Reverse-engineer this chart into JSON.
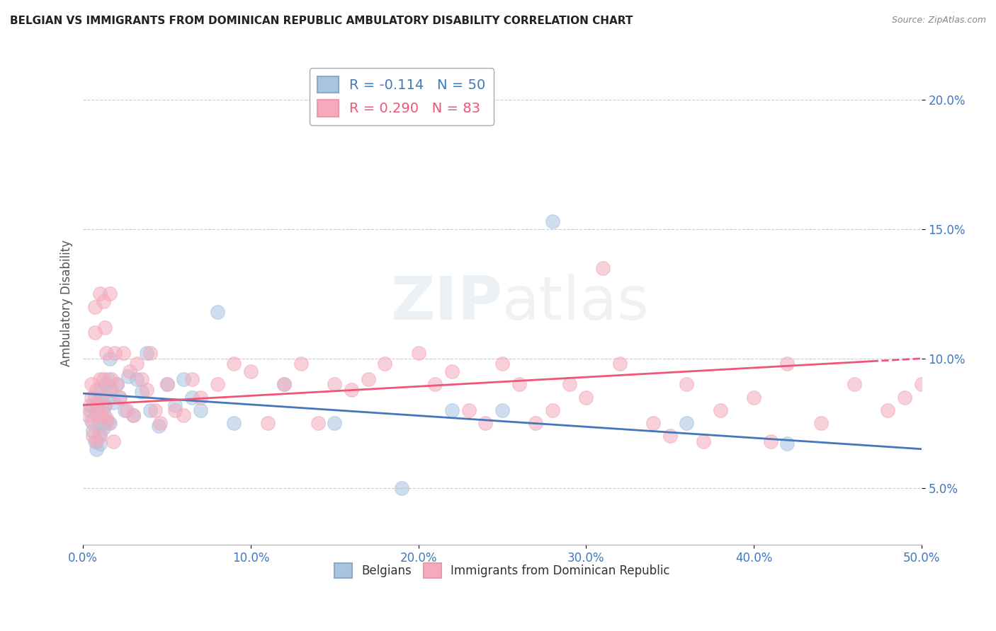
{
  "title": "BELGIAN VS IMMIGRANTS FROM DOMINICAN REPUBLIC AMBULATORY DISABILITY CORRELATION CHART",
  "source": "Source: ZipAtlas.com",
  "ylabel": "Ambulatory Disability",
  "xlabel": "",
  "xlim": [
    0.0,
    0.5
  ],
  "ylim": [
    0.028,
    0.215
  ],
  "xticks": [
    0.0,
    0.1,
    0.2,
    0.3,
    0.4,
    0.5
  ],
  "yticks": [
    0.05,
    0.1,
    0.15,
    0.2
  ],
  "watermark": "ZIPatlas",
  "legend_r1": "R = -0.114   N = 50",
  "legend_r2": "R = 0.290   N = 83",
  "blue_color": "#A8C4E0",
  "pink_color": "#F4AABC",
  "blue_line_color": "#4477BB",
  "pink_line_color": "#EE5577",
  "blue_r": -0.114,
  "pink_r": 0.29,
  "belgians_x": [
    0.004,
    0.005,
    0.006,
    0.006,
    0.007,
    0.007,
    0.008,
    0.008,
    0.009,
    0.01,
    0.01,
    0.01,
    0.01,
    0.011,
    0.012,
    0.012,
    0.013,
    0.013,
    0.014,
    0.015,
    0.015,
    0.016,
    0.016,
    0.017,
    0.018,
    0.02,
    0.022,
    0.025,
    0.027,
    0.03,
    0.032,
    0.035,
    0.038,
    0.04,
    0.045,
    0.05,
    0.055,
    0.06,
    0.065,
    0.07,
    0.08,
    0.09,
    0.12,
    0.15,
    0.19,
    0.22,
    0.25,
    0.28,
    0.36,
    0.42
  ],
  "belgians_y": [
    0.08,
    0.076,
    0.082,
    0.072,
    0.085,
    0.068,
    0.079,
    0.065,
    0.083,
    0.088,
    0.075,
    0.071,
    0.067,
    0.085,
    0.079,
    0.073,
    0.09,
    0.082,
    0.076,
    0.092,
    0.085,
    0.1,
    0.075,
    0.088,
    0.083,
    0.09,
    0.085,
    0.08,
    0.093,
    0.078,
    0.092,
    0.087,
    0.102,
    0.08,
    0.074,
    0.09,
    0.082,
    0.092,
    0.085,
    0.08,
    0.118,
    0.075,
    0.09,
    0.075,
    0.05,
    0.08,
    0.08,
    0.153,
    0.075,
    0.067
  ],
  "dominican_x": [
    0.003,
    0.004,
    0.005,
    0.005,
    0.006,
    0.006,
    0.007,
    0.007,
    0.008,
    0.008,
    0.009,
    0.009,
    0.01,
    0.01,
    0.01,
    0.011,
    0.011,
    0.012,
    0.012,
    0.013,
    0.013,
    0.014,
    0.014,
    0.015,
    0.016,
    0.016,
    0.017,
    0.018,
    0.019,
    0.02,
    0.022,
    0.024,
    0.026,
    0.028,
    0.03,
    0.032,
    0.035,
    0.038,
    0.04,
    0.043,
    0.046,
    0.05,
    0.055,
    0.06,
    0.065,
    0.07,
    0.08,
    0.09,
    0.1,
    0.11,
    0.12,
    0.13,
    0.14,
    0.15,
    0.16,
    0.17,
    0.18,
    0.2,
    0.21,
    0.22,
    0.23,
    0.24,
    0.26,
    0.28,
    0.3,
    0.32,
    0.34,
    0.36,
    0.38,
    0.4,
    0.42,
    0.44,
    0.46,
    0.48,
    0.49,
    0.5,
    0.25,
    0.27,
    0.29,
    0.31,
    0.35,
    0.37,
    0.41
  ],
  "dominican_y": [
    0.078,
    0.082,
    0.085,
    0.09,
    0.075,
    0.07,
    0.12,
    0.11,
    0.068,
    0.088,
    0.082,
    0.078,
    0.125,
    0.07,
    0.092,
    0.085,
    0.078,
    0.092,
    0.122,
    0.112,
    0.082,
    0.077,
    0.102,
    0.075,
    0.088,
    0.125,
    0.092,
    0.068,
    0.102,
    0.09,
    0.085,
    0.102,
    0.08,
    0.095,
    0.078,
    0.098,
    0.092,
    0.088,
    0.102,
    0.08,
    0.075,
    0.09,
    0.08,
    0.078,
    0.092,
    0.085,
    0.09,
    0.098,
    0.095,
    0.075,
    0.09,
    0.098,
    0.075,
    0.09,
    0.088,
    0.092,
    0.098,
    0.102,
    0.09,
    0.095,
    0.08,
    0.075,
    0.09,
    0.08,
    0.085,
    0.098,
    0.075,
    0.09,
    0.08,
    0.085,
    0.098,
    0.075,
    0.09,
    0.08,
    0.085,
    0.09,
    0.098,
    0.075,
    0.09,
    0.135,
    0.07,
    0.068,
    0.068
  ]
}
